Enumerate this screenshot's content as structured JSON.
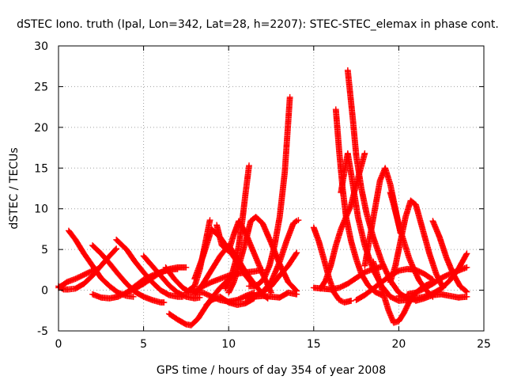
{
  "chart_data": {
    "type": "scatter",
    "title": "dSTEC Iono. truth (Ipal, Lon=342, Lat=28, h=2207): STEC-STEC_elemax in phase cont.",
    "xlabel": "GPS time / hours of day 354 of year 2008",
    "ylabel": "dSTEC  / TECUs",
    "xlim": [
      0,
      25
    ],
    "ylim": [
      -5,
      30
    ],
    "xticks": [
      0,
      5,
      10,
      15,
      20,
      25
    ],
    "yticks": [
      -5,
      0,
      5,
      10,
      15,
      20,
      25,
      30
    ],
    "grid": true,
    "legend": "none",
    "marker": "+",
    "color": "#ff0000",
    "series": [
      {
        "x": [
          0.0,
          0.3,
          0.6,
          1.0,
          1.5,
          2.0,
          2.5,
          3.0,
          3.4
        ],
        "y": [
          0.5,
          0.1,
          0.1,
          0.2,
          0.8,
          1.8,
          3.0,
          4.2,
          5.1
        ]
      },
      {
        "x": [
          0.0,
          0.5,
          1.0,
          1.5,
          2.0,
          2.3
        ],
        "y": [
          0.3,
          1.0,
          1.4,
          1.9,
          2.4,
          2.6
        ]
      },
      {
        "x": [
          0.6,
          1.0,
          1.5,
          2.0,
          2.5,
          3.0,
          3.5,
          4.0,
          4.4
        ],
        "y": [
          7.3,
          6.2,
          4.5,
          3.0,
          1.5,
          0.5,
          -0.3,
          -0.7,
          -0.8
        ]
      },
      {
        "x": [
          2.0,
          2.5,
          3.0,
          3.5,
          4.0,
          4.5,
          5.0,
          5.5,
          6.0,
          6.2
        ],
        "y": [
          5.5,
          4.5,
          3.3,
          2.0,
          0.8,
          -0.2,
          -0.8,
          -1.2,
          -1.5,
          -1.5
        ]
      },
      {
        "x": [
          2.0,
          2.5,
          3.0,
          3.5,
          4.0,
          4.5,
          5.0,
          5.5,
          6.0,
          6.5,
          7.0
        ],
        "y": [
          -0.5,
          -0.9,
          -1.0,
          -0.8,
          -0.3,
          0.5,
          1.3,
          1.8,
          2.2,
          2.5,
          2.6
        ]
      },
      {
        "x": [
          3.4,
          4.0,
          4.5,
          5.0,
          5.5,
          6.0,
          6.5,
          7.0,
          7.3
        ],
        "y": [
          6.2,
          5.0,
          3.5,
          2.2,
          1.0,
          0.0,
          -0.6,
          -0.8,
          -0.8
        ]
      },
      {
        "x": [
          4.0,
          4.5,
          5.0,
          5.5,
          6.0,
          6.5,
          7.0,
          7.5
        ],
        "y": [
          -0.3,
          0.2,
          0.8,
          1.5,
          2.2,
          2.6,
          2.8,
          2.8
        ]
      },
      {
        "x": [
          5.0,
          5.5,
          6.0,
          6.5,
          7.0,
          7.5,
          8.0,
          8.3
        ],
        "y": [
          4.2,
          3.0,
          1.8,
          0.6,
          -0.3,
          -0.8,
          -1.0,
          -0.9
        ]
      },
      {
        "x": [
          6.3,
          6.8,
          7.3,
          7.6,
          8.0,
          8.3,
          8.6,
          8.9
        ],
        "y": [
          2.8,
          1.4,
          0.3,
          -0.1,
          0.5,
          2.5,
          5.5,
          8.6
        ]
      },
      {
        "x": [
          6.5,
          7.0,
          7.5,
          7.8,
          8.2,
          8.6,
          9.0,
          9.5,
          10.0,
          10.5
        ],
        "y": [
          -2.9,
          -3.6,
          -4.2,
          -4.3,
          -3.5,
          -2.2,
          -1.0,
          0.3,
          1.3,
          2.0
        ]
      },
      {
        "x": [
          7.5,
          8.0,
          8.5,
          9.0,
          9.5,
          10.0,
          10.5,
          11.0,
          11.5
        ],
        "y": [
          -0.3,
          -0.2,
          -0.3,
          -0.8,
          -1.2,
          -1.4,
          -1.2,
          -0.7,
          -0.3
        ]
      },
      {
        "x": [
          8.0,
          8.5,
          9.0,
          9.5,
          10.0,
          10.5,
          11.0,
          11.5,
          12.0
        ],
        "y": [
          -0.2,
          0.5,
          1.0,
          1.4,
          1.8,
          2.0,
          2.2,
          2.3,
          2.5
        ]
      },
      {
        "x": [
          8.0,
          8.5,
          9.0,
          9.5,
          10.0,
          10.5,
          11.0,
          11.5
        ],
        "y": [
          1.4,
          4.2,
          7.5,
          6.5,
          5.0,
          3.5,
          1.8,
          0.5
        ]
      },
      {
        "x": [
          8.0,
          8.5,
          9.0,
          9.5,
          10.0,
          10.5,
          11.0,
          11.5,
          12.0,
          12.3
        ],
        "y": [
          -0.5,
          0.8,
          2.5,
          4.2,
          5.5,
          4.0,
          2.2,
          0.8,
          -0.5,
          -1.0
        ]
      },
      {
        "x": [
          8.7,
          9.0,
          9.5,
          10.0,
          10.5,
          11.0,
          11.5
        ],
        "y": [
          -1.8,
          -1.2,
          -0.8,
          -1.5,
          -1.8,
          -1.6,
          -1.0
        ]
      },
      {
        "x": [
          9.3,
          9.6,
          10.0,
          10.3,
          10.6,
          11.0,
          11.5,
          12.0,
          12.5
        ],
        "y": [
          8.0,
          5.5,
          4.8,
          6.8,
          8.5,
          7.0,
          4.5,
          2.0,
          -0.3
        ]
      },
      {
        "x": [
          10.0,
          10.3,
          10.6,
          11.0,
          11.3,
          11.6,
          12.0,
          12.5,
          13.0,
          13.5,
          14.0
        ],
        "y": [
          -0.3,
          1.0,
          3.0,
          6.0,
          8.5,
          9.0,
          8.2,
          5.8,
          3.2,
          1.0,
          -0.1
        ]
      },
      {
        "x": [
          9.8,
          10.0,
          10.2,
          10.4,
          10.6,
          10.8,
          11.0,
          11.2
        ],
        "y": [
          0.2,
          1.0,
          2.0,
          3.5,
          5.5,
          8.5,
          12.0,
          15.3
        ]
      },
      {
        "x": [
          11.0,
          11.5,
          12.0,
          12.5,
          13.0,
          13.5,
          14.0
        ],
        "y": [
          -1.0,
          -0.7,
          -0.2,
          0.5,
          1.8,
          3.0,
          4.6
        ]
      },
      {
        "x": [
          11.2,
          11.5,
          11.8,
          12.1,
          12.4,
          12.7,
          13.0,
          13.3,
          13.6
        ],
        "y": [
          0.5,
          0.5,
          0.8,
          1.5,
          3.0,
          5.5,
          9.0,
          14.5,
          23.7
        ]
      },
      {
        "x": [
          11.5,
          12.0,
          12.5,
          13.0,
          13.5,
          14.0
        ],
        "y": [
          -0.8,
          -0.7,
          -0.8,
          -0.9,
          -0.3,
          -0.5
        ]
      },
      {
        "x": [
          12.0,
          12.5,
          13.0,
          13.4,
          13.8,
          14.0,
          14.1
        ],
        "y": [
          -0.2,
          1.0,
          3.5,
          6.0,
          8.2,
          8.5,
          8.6
        ]
      },
      {
        "x": [
          15.0,
          15.3,
          15.6,
          15.9,
          16.2,
          16.5,
          16.8,
          17.2
        ],
        "y": [
          7.7,
          6.0,
          3.8,
          1.5,
          -0.3,
          -1.2,
          -1.5,
          -1.3
        ]
      },
      {
        "x": [
          15.0,
          15.5,
          16.0,
          16.5,
          17.0,
          17.5,
          18.0,
          18.5,
          19.0
        ],
        "y": [
          0.3,
          0.2,
          0.1,
          0.3,
          0.8,
          1.5,
          2.2,
          2.6,
          2.9
        ]
      },
      {
        "x": [
          15.4,
          15.7,
          16.0,
          16.3,
          16.6,
          16.9,
          17.2,
          17.5,
          18.0
        ],
        "y": [
          0.2,
          1.2,
          3.0,
          5.5,
          7.5,
          9.0,
          10.5,
          13.0,
          16.8
        ]
      },
      {
        "x": [
          16.3,
          16.5,
          16.7,
          16.9,
          17.2,
          17.5,
          17.8,
          18.2,
          18.6,
          19.0
        ],
        "y": [
          22.2,
          17.0,
          12.5,
          9.0,
          6.0,
          3.8,
          2.0,
          0.6,
          -0.2,
          -0.6
        ]
      },
      {
        "x": [
          16.6,
          16.8,
          17.0,
          17.3,
          17.6,
          18.0,
          18.5,
          19.0,
          19.5,
          20.0,
          20.5
        ],
        "y": [
          12.0,
          14.5,
          16.8,
          13.0,
          9.0,
          5.5,
          2.5,
          0.5,
          -0.8,
          -1.3,
          -1.2
        ]
      },
      {
        "x": [
          17.0,
          17.1,
          17.3,
          17.5,
          17.8,
          18.1,
          18.5,
          19.0,
          19.5,
          20.0,
          20.5,
          21.0
        ],
        "y": [
          27.0,
          25.0,
          21.0,
          16.5,
          12.5,
          9.5,
          6.5,
          3.5,
          1.2,
          -0.3,
          -1.0,
          -1.2
        ]
      },
      {
        "x": [
          17.5,
          18.0,
          18.5,
          19.0,
          19.5,
          20.0,
          20.5,
          21.0,
          21.5,
          22.0
        ],
        "y": [
          -1.2,
          -0.6,
          0.2,
          1.0,
          1.8,
          2.4,
          2.6,
          2.5,
          2.0,
          1.3
        ]
      },
      {
        "x": [
          18.0,
          18.3,
          18.6,
          18.9,
          19.2,
          19.5,
          19.8,
          20.1
        ],
        "y": [
          3.0,
          6.5,
          10.0,
          13.5,
          15.0,
          13.0,
          10.0,
          7.0
        ]
      },
      {
        "x": [
          18.5,
          18.8,
          19.1,
          19.4,
          19.7,
          20.0,
          20.3,
          20.6,
          21.0,
          21.5,
          22.0
        ],
        "y": [
          3.5,
          1.5,
          -0.5,
          -2.5,
          -4.0,
          -3.8,
          -2.8,
          -1.5,
          -0.3,
          0.5,
          1.0
        ]
      },
      {
        "x": [
          19.5,
          19.7,
          20.0,
          20.3,
          20.6,
          20.9,
          21.2,
          21.6,
          22.0
        ],
        "y": [
          12.0,
          10.5,
          8.0,
          6.0,
          4.0,
          2.5,
          1.2,
          0.0,
          -0.8
        ]
      },
      {
        "x": [
          19.5,
          19.8,
          20.1,
          20.4,
          20.7,
          21.0,
          21.4,
          21.8,
          22.2,
          22.6
        ],
        "y": [
          1.0,
          3.0,
          6.0,
          9.0,
          11.0,
          10.5,
          7.5,
          4.5,
          2.0,
          0.3
        ]
      },
      {
        "x": [
          20.0,
          20.5,
          21.0,
          21.5,
          22.0,
          22.5,
          23.0,
          23.5,
          24.0
        ],
        "y": [
          -0.7,
          -1.0,
          -1.0,
          -0.8,
          -0.4,
          0.2,
          1.2,
          2.6,
          4.5
        ]
      },
      {
        "x": [
          20.5,
          21.0,
          21.5,
          22.0,
          22.5,
          23.0,
          23.5,
          24.0
        ],
        "y": [
          -0.5,
          -0.3,
          0.2,
          0.8,
          1.5,
          2.0,
          2.4,
          2.8
        ]
      },
      {
        "x": [
          21.0,
          21.5,
          22.0,
          22.5,
          23.0,
          23.5,
          24.0
        ],
        "y": [
          -1.3,
          -1.0,
          -0.6,
          -0.5,
          -0.7,
          -0.9,
          -0.8
        ]
      },
      {
        "x": [
          22.0,
          22.4,
          22.8,
          23.2,
          23.6,
          24.0
        ],
        "y": [
          8.5,
          6.5,
          4.0,
          2.0,
          0.5,
          -0.2
        ]
      }
    ]
  }
}
